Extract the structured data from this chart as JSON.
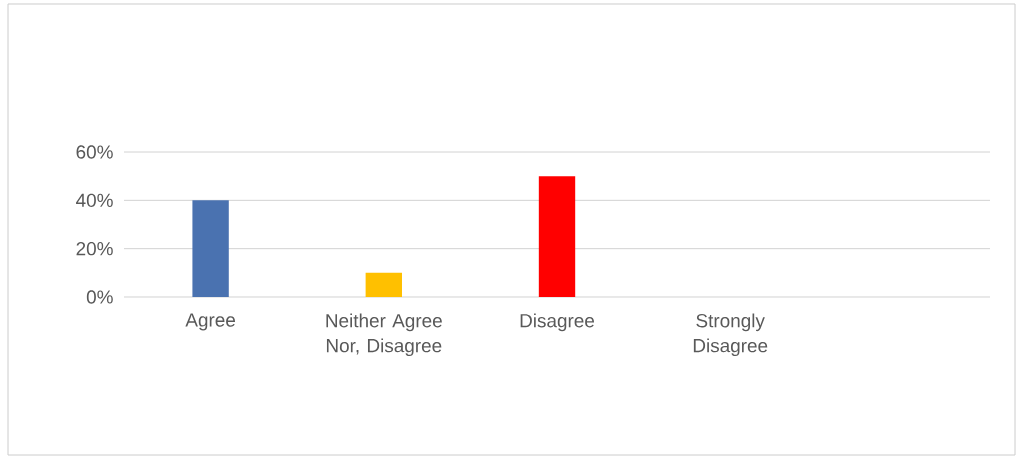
{
  "chart_data": {
    "type": "bar",
    "categories": [
      "Agree",
      "Neither Agree Nor, Disagree",
      "Disagree",
      "Strongly Disagree",
      null
    ],
    "values": [
      40,
      10,
      50,
      0,
      null
    ],
    "colors": [
      "#4a72b0",
      "#ffc000",
      "#ff0000",
      "#ff0000",
      "#ff0000"
    ],
    "ylim": [
      0,
      60
    ],
    "yticks": [
      {
        "value": 0,
        "label": "0%"
      },
      {
        "value": 20,
        "label": "20%"
      },
      {
        "value": 40,
        "label": "40%"
      },
      {
        "value": 60,
        "label": "60%"
      }
    ],
    "grid": "y"
  }
}
